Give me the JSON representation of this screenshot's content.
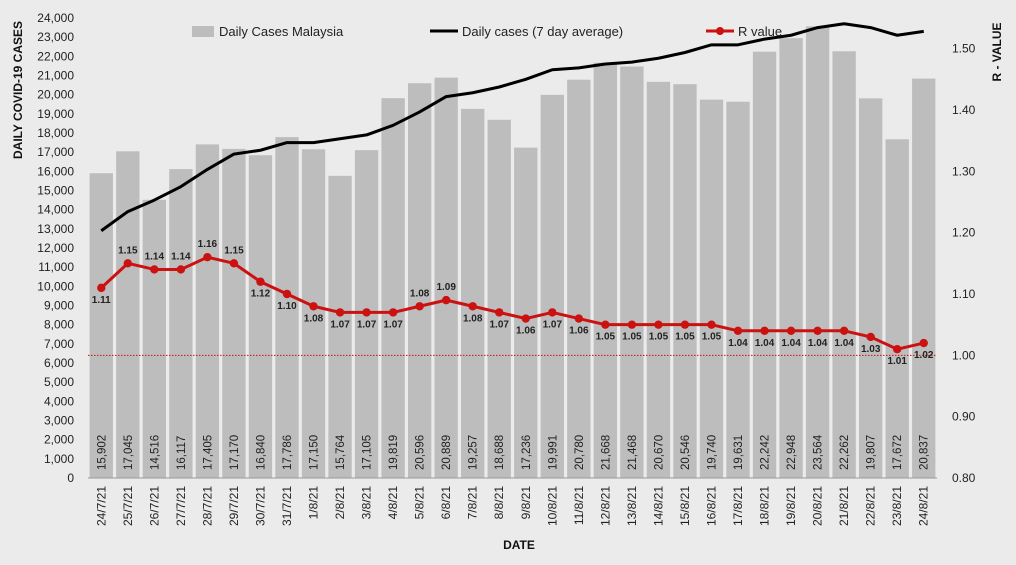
{
  "chart_data": {
    "type": "bar",
    "xlabel": "DATE",
    "ylabel": "DAILY COVID-19 CASES",
    "y2label": "R - VALUE",
    "ylim": [
      0,
      24000
    ],
    "y2lim": [
      0.8,
      1.55
    ],
    "yticks": [
      "0",
      "1,000",
      "2,000",
      "3,000",
      "4,000",
      "5,000",
      "6,000",
      "7,000",
      "8,000",
      "9,000",
      "10,000",
      "11,000",
      "12,000",
      "13,000",
      "14,000",
      "15,000",
      "16,000",
      "17,000",
      "18,000",
      "19,000",
      "20,000",
      "21,000",
      "22,000",
      "23,000",
      "24,000"
    ],
    "y2ticks": [
      "0.80",
      "0.90",
      "1.00",
      "1.10",
      "1.20",
      "1.30",
      "1.40",
      "1.50"
    ],
    "legend_position": "top",
    "categories": [
      "24/7/21",
      "25/7/21",
      "26/7/21",
      "27/7/21",
      "28/7/21",
      "29/7/21",
      "30/7/21",
      "31/7/21",
      "1/8/21",
      "2/8/21",
      "3/8/21",
      "4/8/21",
      "5/8/21",
      "6/8/21",
      "7/8/21",
      "8/8/21",
      "9/8/21",
      "10/8/21",
      "11/8/21",
      "12/8/21",
      "13/8/21",
      "14/8/21",
      "15/8/21",
      "16/8/21",
      "17/8/21",
      "18/8/21",
      "19/8/21",
      "20/8/21",
      "21/8/21",
      "22/8/21",
      "23/8/21",
      "24/8/21"
    ],
    "series": [
      {
        "name": "Daily Cases Malaysia",
        "type": "bar",
        "axis": "left",
        "color": "#bdbdbd",
        "values": [
          15902,
          17045,
          14516,
          16117,
          17405,
          17170,
          16840,
          17786,
          17150,
          15764,
          17105,
          19819,
          20596,
          20889,
          19257,
          18688,
          17236,
          19991,
          20780,
          21668,
          21468,
          20670,
          20546,
          19740,
          19631,
          22242,
          22948,
          23564,
          22262,
          19807,
          17672,
          20837
        ],
        "labels": [
          "15,902",
          "17,045",
          "14,516",
          "16,117",
          "17,405",
          "17,170",
          "16,840",
          "17,786",
          "17,150",
          "15,764",
          "17,105",
          "19,819",
          "20,596",
          "20,889",
          "19,257",
          "18,688",
          "17,236",
          "19,991",
          "20,780",
          "21,668",
          "21,468",
          "20,670",
          "20,546",
          "19,740",
          "19,631",
          "22,242",
          "22,948",
          "23,564",
          "22,262",
          "19,807",
          "17,672",
          "20,837"
        ]
      },
      {
        "name": "Daily cases (7 day average)",
        "type": "line",
        "axis": "left",
        "color": "#000000",
        "values": [
          12900,
          13900,
          14500,
          15200,
          16100,
          16900,
          17100,
          17500,
          17500,
          17700,
          17900,
          18400,
          19100,
          19900,
          20100,
          20400,
          20800,
          21300,
          21400,
          21600,
          21700,
          21900,
          22200,
          22600,
          22600,
          22900,
          23100,
          23500,
          23700,
          23500,
          23100,
          23300
        ]
      },
      {
        "name": "R value",
        "type": "line",
        "axis": "right",
        "color": "#cc1111",
        "values": [
          1.11,
          1.15,
          1.14,
          1.14,
          1.16,
          1.15,
          1.12,
          1.1,
          1.08,
          1.07,
          1.07,
          1.07,
          1.08,
          1.09,
          1.08,
          1.07,
          1.06,
          1.07,
          1.06,
          1.05,
          1.05,
          1.05,
          1.05,
          1.05,
          1.04,
          1.04,
          1.04,
          1.04,
          1.04,
          1.03,
          1.01,
          1.02
        ],
        "labels": [
          "1.11",
          "1.15",
          "1.14",
          "1.14",
          "1.16",
          "1.15",
          "1.12",
          "1.10",
          "1.08",
          "1.07",
          "1.07",
          "1.07",
          "1.08",
          "1.09",
          "1.08",
          "1.07",
          "1.06",
          "1.07",
          "1.06",
          "1.05",
          "1.05",
          "1.05",
          "1.05",
          "1.05",
          "1.04",
          "1.04",
          "1.04",
          "1.04",
          "1.04",
          "1.03",
          "1.01",
          "1.02"
        ]
      }
    ],
    "reference_line": {
      "axis": "right",
      "value": 1.0,
      "color": "#cc1111",
      "style": "dotted"
    }
  }
}
